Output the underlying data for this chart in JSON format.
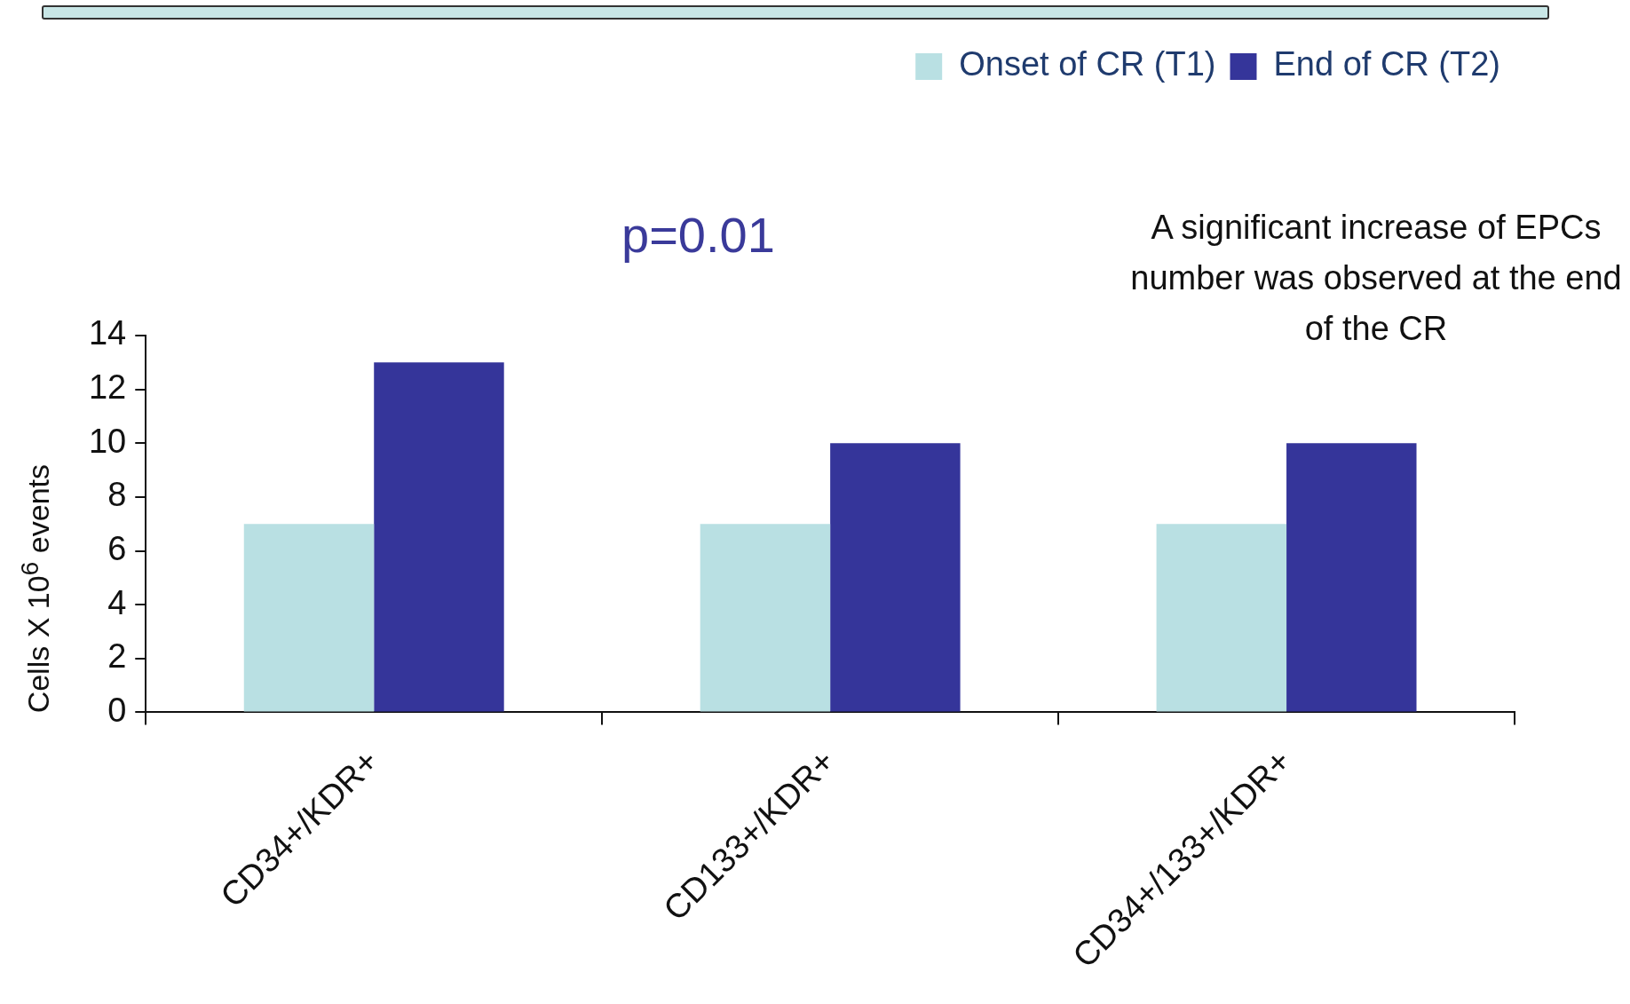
{
  "chart_data": {
    "type": "bar",
    "ylabel": "Cells X 10$^{6}$ events",
    "categories": [
      "CD34+/KDR+",
      "CD133+/KDR+",
      "CD34+/133+/KDR+"
    ],
    "series": [
      {
        "name": "Onset of CR (T1)",
        "color": "#b9e0e3",
        "values": [
          7,
          7,
          7
        ]
      },
      {
        "name": "End of CR (T2)",
        "color": "#35359a",
        "values": [
          13,
          10,
          10
        ]
      }
    ],
    "ylim": [
      0,
      14
    ],
    "yticks": [
      0,
      2,
      4,
      6,
      8,
      10,
      12,
      14
    ],
    "grid": false,
    "legend": "top right",
    "annotations": [
      "p=0.01",
      "A significant increase of EPCs number was observed at the end of the CR"
    ]
  }
}
